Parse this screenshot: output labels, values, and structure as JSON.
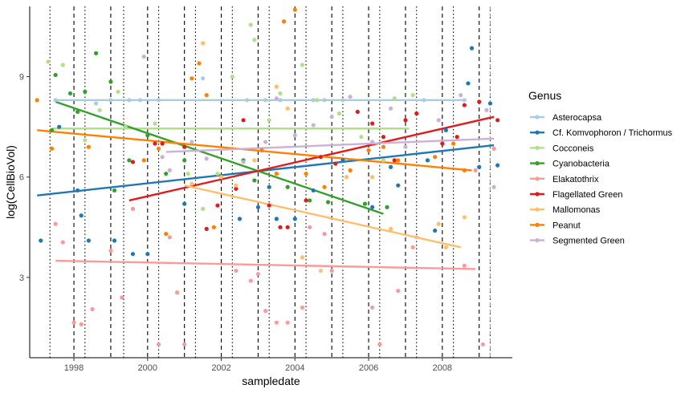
{
  "chart_data": {
    "type": "scatter",
    "xlabel": "sampledate",
    "ylabel": "log(CellBioVol)",
    "xlim": [
      1996.8,
      2009.9
    ],
    "ylim": [
      0.6,
      11.1
    ],
    "x_ticks": [
      1998,
      2000,
      2002,
      2004,
      2006,
      2008
    ],
    "x_tick_labels": [
      "1998",
      "2000",
      "2002",
      "2004",
      "2006",
      "2008"
    ],
    "y_ticks": [
      3,
      6,
      9
    ],
    "y_tick_labels": [
      "3",
      "6",
      "9"
    ],
    "grid": false,
    "legend": {
      "title": "Genus",
      "position": "right"
    },
    "vlines": {
      "dashed": [
        1998,
        1999,
        2000,
        2001,
        2002,
        2003,
        2004,
        2005,
        2006,
        2007,
        2008,
        2009,
        2009.3
      ],
      "dotted": [
        1997.35,
        1998.3,
        1999.35,
        2000.3,
        2001.3,
        2002.3,
        2003.3,
        2004.3,
        2005.3,
        2006.3,
        2007.3,
        2008.3,
        2009.3
      ]
    },
    "series": [
      {
        "name": "Asterocapsa",
        "color": "#a6cee3",
        "trend": [
          [
            1997.5,
            8.3
          ],
          [
            2008.6,
            8.3
          ]
        ],
        "points": [
          [
            1997.5,
            8.3
          ],
          [
            1998.6,
            8.2
          ],
          [
            1999.0,
            8.3
          ],
          [
            1999.5,
            8.3
          ],
          [
            1999.8,
            8.3
          ],
          [
            2000.3,
            8.3
          ],
          [
            2001.5,
            8.95
          ],
          [
            2002.7,
            8.3
          ],
          [
            2003.2,
            8.3
          ],
          [
            2003.6,
            8.3
          ],
          [
            2004.5,
            8.3
          ],
          [
            2004.8,
            8.3
          ],
          [
            2005.3,
            8.3
          ],
          [
            2007.5,
            8.3
          ],
          [
            2008.6,
            8.3
          ]
        ]
      },
      {
        "name": "Cf. Komvophoron / Trichormus",
        "color": "#1f78b4",
        "trend": [
          [
            1997.0,
            5.45
          ],
          [
            2009.4,
            6.95
          ]
        ],
        "points": [
          [
            1997.1,
            4.1
          ],
          [
            1997.6,
            7.5
          ],
          [
            1998.1,
            5.6
          ],
          [
            1998.2,
            4.85
          ],
          [
            1998.4,
            4.1
          ],
          [
            1999.1,
            4.1
          ],
          [
            1999.6,
            3.7
          ],
          [
            2000.0,
            3.7
          ],
          [
            2001.0,
            5.2
          ],
          [
            2002.5,
            4.75
          ],
          [
            2003.0,
            5.1
          ],
          [
            2003.3,
            5.7
          ],
          [
            2003.5,
            4.75
          ],
          [
            2004.0,
            4.75
          ],
          [
            2004.5,
            5.6
          ],
          [
            2005.3,
            6.5
          ],
          [
            2006.1,
            5.1
          ],
          [
            2006.6,
            6.3
          ],
          [
            2006.8,
            5.75
          ],
          [
            2007.6,
            6.5
          ],
          [
            2007.8,
            4.4
          ],
          [
            2008.1,
            7.4
          ],
          [
            2008.7,
            8.8
          ],
          [
            2008.8,
            9.85
          ],
          [
            2009.0,
            6.3
          ],
          [
            2009.3,
            8.2
          ],
          [
            2009.5,
            6.35
          ]
        ]
      },
      {
        "name": "Cocconeis",
        "color": "#b2df8a",
        "trend": [
          [
            1997.4,
            7.45
          ],
          [
            2007.1,
            7.45
          ]
        ],
        "points": [
          [
            1997.3,
            9.45
          ],
          [
            1997.7,
            9.35
          ],
          [
            1998.3,
            7.1
          ],
          [
            1998.7,
            8.0
          ],
          [
            1999.2,
            8.55
          ],
          [
            1999.4,
            7.5
          ],
          [
            2000.2,
            7.6
          ],
          [
            2001.1,
            6.1
          ],
          [
            2001.5,
            5.05
          ],
          [
            2001.9,
            6.1
          ],
          [
            2002.3,
            9.0
          ],
          [
            2002.8,
            10.55
          ],
          [
            2002.9,
            10.1
          ],
          [
            2003.3,
            7.7
          ],
          [
            2003.6,
            8.5
          ],
          [
            2004.2,
            9.35
          ],
          [
            2004.6,
            8.3
          ],
          [
            2005.2,
            7.9
          ],
          [
            2005.8,
            7.2
          ],
          [
            2006.4,
            6.5
          ],
          [
            2006.7,
            8.35
          ],
          [
            2007.2,
            8.45
          ]
        ]
      },
      {
        "name": "Cyanobacteria",
        "color": "#33a02c",
        "trend": [
          [
            1997.5,
            8.25
          ],
          [
            2006.4,
            4.9
          ]
        ],
        "points": [
          [
            1997.4,
            7.4
          ],
          [
            1997.5,
            9.05
          ],
          [
            1997.9,
            8.5
          ],
          [
            1998.1,
            7.95
          ],
          [
            1998.3,
            8.55
          ],
          [
            1998.6,
            9.7
          ],
          [
            1999.0,
            8.85
          ],
          [
            1999.1,
            5.6
          ],
          [
            1999.5,
            6.5
          ],
          [
            2000.0,
            7.25
          ],
          [
            2000.5,
            6.1
          ],
          [
            2001.0,
            6.5
          ],
          [
            2002.0,
            6.0
          ],
          [
            2002.6,
            6.5
          ],
          [
            2002.9,
            5.9
          ],
          [
            2003.8,
            5.7
          ],
          [
            2004.4,
            5.3
          ],
          [
            2004.9,
            5.25
          ],
          [
            2005.9,
            5.2
          ],
          [
            2006.5,
            5.1
          ]
        ]
      },
      {
        "name": "Elakatothrix",
        "color": "#fb9a99",
        "trend": [
          [
            1997.5,
            3.5
          ],
          [
            2008.9,
            3.25
          ]
        ],
        "points": [
          [
            1997.5,
            4.6
          ],
          [
            1997.7,
            4.05
          ],
          [
            1998.0,
            1.65
          ],
          [
            1998.2,
            1.6
          ],
          [
            1998.5,
            2.05
          ],
          [
            1999.0,
            3.8
          ],
          [
            1999.3,
            2.4
          ],
          [
            1999.6,
            5.05
          ],
          [
            2000.3,
            1.0
          ],
          [
            2000.6,
            4.2
          ],
          [
            2000.8,
            2.55
          ],
          [
            2001.0,
            1.0
          ],
          [
            2002.4,
            3.2
          ],
          [
            2002.8,
            2.9
          ],
          [
            2003.0,
            3.1
          ],
          [
            2003.2,
            2.0
          ],
          [
            2003.5,
            1.65
          ],
          [
            2003.8,
            1.65
          ],
          [
            2004.2,
            2.1
          ],
          [
            2004.4,
            4.5
          ],
          [
            2004.8,
            4.3
          ],
          [
            2005.0,
            3.2
          ],
          [
            2006.1,
            2.1
          ],
          [
            2006.3,
            1.0
          ],
          [
            2006.8,
            2.6
          ],
          [
            2007.2,
            3.9
          ],
          [
            2008.6,
            3.35
          ],
          [
            2008.9,
            6.2
          ],
          [
            2009.1,
            1.0
          ],
          [
            2009.4,
            6.85
          ]
        ]
      },
      {
        "name": "Flagellated Green",
        "color": "#e31a1c",
        "trend": [
          [
            1999.5,
            5.3
          ],
          [
            2009.4,
            7.8
          ]
        ],
        "points": [
          [
            1999.6,
            6.45
          ],
          [
            2000.2,
            7.0
          ],
          [
            2000.4,
            7.0
          ],
          [
            2001.0,
            6.9
          ],
          [
            2001.6,
            4.45
          ],
          [
            2001.9,
            5.15
          ],
          [
            2002.4,
            5.65
          ],
          [
            2002.6,
            7.7
          ],
          [
            2003.3,
            5.15
          ],
          [
            2003.6,
            4.5
          ],
          [
            2003.8,
            4.5
          ],
          [
            2004.3,
            5.3
          ],
          [
            2004.7,
            6.6
          ],
          [
            2005.1,
            6.4
          ],
          [
            2005.7,
            7.95
          ],
          [
            2006.1,
            7.6
          ],
          [
            2006.4,
            7.2
          ],
          [
            2006.7,
            6.5
          ],
          [
            2007.0,
            7.7
          ],
          [
            2007.3,
            7.9
          ],
          [
            2008.0,
            7.0
          ],
          [
            2008.4,
            7.2
          ],
          [
            2008.6,
            8.15
          ],
          [
            2009.0,
            8.25
          ],
          [
            2009.5,
            7.7
          ]
        ]
      },
      {
        "name": "Mallomonas",
        "color": "#fdbf6f",
        "trend": [
          [
            2001.0,
            5.75
          ],
          [
            2008.5,
            3.9
          ]
        ],
        "points": [
          [
            2001.2,
            5.8
          ],
          [
            2001.5,
            10.0
          ],
          [
            2002.0,
            6.0
          ],
          [
            2002.4,
            5.75
          ],
          [
            2002.9,
            6.5
          ],
          [
            2003.5,
            8.7
          ],
          [
            2003.8,
            8.05
          ],
          [
            2004.2,
            3.6
          ],
          [
            2004.7,
            3.2
          ],
          [
            2005.4,
            6.0
          ],
          [
            2006.1,
            6.0
          ],
          [
            2006.6,
            4.45
          ],
          [
            2007.3,
            4.2
          ],
          [
            2007.9,
            4.6
          ],
          [
            2008.1,
            3.9
          ],
          [
            2008.6,
            4.8
          ]
        ]
      },
      {
        "name": "Peanut",
        "color": "#ff7f00",
        "trend": [
          [
            1997.0,
            7.4
          ],
          [
            2008.8,
            6.2
          ]
        ],
        "points": [
          [
            1997.0,
            8.3
          ],
          [
            1997.4,
            6.85
          ],
          [
            1998.4,
            6.9
          ],
          [
            1999.9,
            6.5
          ],
          [
            2000.3,
            6.85
          ],
          [
            2000.5,
            4.3
          ],
          [
            2001.2,
            8.95
          ],
          [
            2001.4,
            9.4
          ],
          [
            2001.6,
            8.45
          ],
          [
            2001.8,
            4.5
          ],
          [
            2003.1,
            6.8
          ],
          [
            2003.5,
            6.1
          ],
          [
            2003.7,
            10.65
          ],
          [
            2004.0,
            11.0
          ],
          [
            2004.3,
            6.1
          ],
          [
            2004.8,
            5.7
          ],
          [
            2005.5,
            6.2
          ],
          [
            2006.0,
            6.8
          ],
          [
            2006.4,
            6.9
          ],
          [
            2006.8,
            6.5
          ],
          [
            2007.8,
            6.6
          ],
          [
            2008.3,
            7.0
          ],
          [
            2008.6,
            6.2
          ]
        ]
      },
      {
        "name": "Segmented Green",
        "color": "#cab2d6",
        "trend": [
          [
            2000.5,
            6.75
          ],
          [
            2009.4,
            7.15
          ]
        ],
        "points": [
          [
            1999.9,
            9.6
          ],
          [
            2000.4,
            6.6
          ],
          [
            2000.6,
            6.2
          ],
          [
            2001.2,
            7.05
          ],
          [
            2001.6,
            6.55
          ],
          [
            2002.6,
            6.45
          ],
          [
            2003.2,
            7.05
          ],
          [
            2003.5,
            8.35
          ],
          [
            2004.0,
            7.25
          ],
          [
            2004.5,
            7.55
          ],
          [
            2005.0,
            7.8
          ],
          [
            2005.5,
            8.4
          ],
          [
            2006.1,
            7.05
          ],
          [
            2006.6,
            8.05
          ],
          [
            2007.0,
            6.9
          ],
          [
            2007.9,
            7.7
          ],
          [
            2008.5,
            8.45
          ],
          [
            2009.2,
            8.0
          ],
          [
            2009.4,
            5.7
          ]
        ]
      }
    ]
  }
}
